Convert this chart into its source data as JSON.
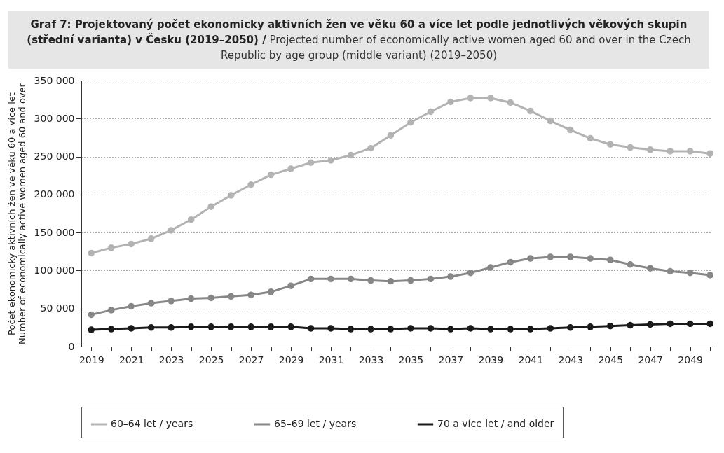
{
  "chart_data": {
    "type": "line",
    "title": "Graf 7: Projektovaný počet ekonomicky aktivních žen ve věku 60 a více let podle jednotlivých věkových skupin (střední varianta) v Česku (2019–2050) /",
    "subtitle": "Projected number of economically active women aged 60 and over in the Czech Republic by age group (middle variant) (2019–2050)",
    "ylabel": "Počet ekonomicky aktivních žen ve věku 60 a více let\nNumber of economically active women aged 60 and over",
    "x": [
      2019,
      2020,
      2021,
      2022,
      2023,
      2024,
      2025,
      2026,
      2027,
      2028,
      2029,
      2030,
      2031,
      2032,
      2033,
      2034,
      2035,
      2036,
      2037,
      2038,
      2039,
      2040,
      2041,
      2042,
      2043,
      2044,
      2045,
      2046,
      2047,
      2048,
      2049,
      2050
    ],
    "series": [
      {
        "name": "60–64 let / years",
        "color": "#b3b3b3",
        "values": [
          123000,
          130000,
          135000,
          142000,
          153000,
          167000,
          184000,
          199000,
          213000,
          226000,
          234000,
          242000,
          245000,
          252000,
          261000,
          278000,
          295000,
          309000,
          322000,
          327000,
          327000,
          321000,
          310000,
          297000,
          285000,
          274000,
          266000,
          262000,
          259000,
          257000,
          257000,
          254000
        ]
      },
      {
        "name": "65–69 let / years",
        "color": "#878787",
        "values": [
          42000,
          48000,
          53000,
          57000,
          60000,
          63000,
          64000,
          66000,
          68000,
          72000,
          80000,
          89000,
          89000,
          89000,
          87000,
          86000,
          87000,
          89000,
          92000,
          97000,
          104000,
          111000,
          116000,
          118000,
          118000,
          116000,
          114000,
          108000,
          103000,
          99000,
          97000,
          94000
        ]
      },
      {
        "name": "70 a více let / and older",
        "color": "#1a1a1a",
        "values": [
          22000,
          23000,
          24000,
          25000,
          25000,
          26000,
          26000,
          26000,
          26000,
          26000,
          26000,
          24000,
          24000,
          23000,
          23000,
          23000,
          24000,
          24000,
          23000,
          24000,
          23000,
          23000,
          23000,
          24000,
          25000,
          26000,
          27000,
          28000,
          29000,
          30000,
          30000,
          30000
        ]
      }
    ],
    "xlim": [
      2018.5,
      2050.1
    ],
    "xticks": [
      2019,
      {
        "value": 2020,
        "label": null
      },
      2021,
      {
        "value": 2022,
        "label": null
      },
      2023,
      {
        "value": 2024,
        "label": null
      },
      2025,
      {
        "value": 2026,
        "label": null
      },
      2027,
      {
        "value": 2028,
        "label": null
      },
      2029,
      {
        "value": 2030,
        "label": null
      },
      2031,
      {
        "value": 2032,
        "label": null
      },
      2033,
      {
        "value": 2034,
        "label": null
      },
      2035,
      {
        "value": 2036,
        "label": null
      },
      2037,
      {
        "value": 2038,
        "label": null
      },
      2039,
      {
        "value": 2040,
        "label": null
      },
      2041,
      {
        "value": 2042,
        "label": null
      },
      2043,
      {
        "value": 2044,
        "label": null
      },
      2045,
      {
        "value": 2046,
        "label": null
      },
      2047,
      {
        "value": 2048,
        "label": null
      },
      2049,
      {
        "value": 2050,
        "label": null
      }
    ],
    "ylim": [
      0,
      350000
    ],
    "yticks": [
      0,
      {
        "value": 50000,
        "label": "50 000"
      },
      {
        "value": 100000,
        "label": "100 000"
      },
      {
        "value": 150000,
        "label": "150 000"
      },
      {
        "value": 200000,
        "label": "200 000"
      },
      {
        "value": 250000,
        "label": "250 000"
      },
      {
        "value": 300000,
        "label": "300 000"
      },
      {
        "value": 350000,
        "label": "350 000"
      }
    ],
    "grid": "y",
    "legend": "bottom",
    "marker": "circle",
    "line_style": "solid"
  }
}
